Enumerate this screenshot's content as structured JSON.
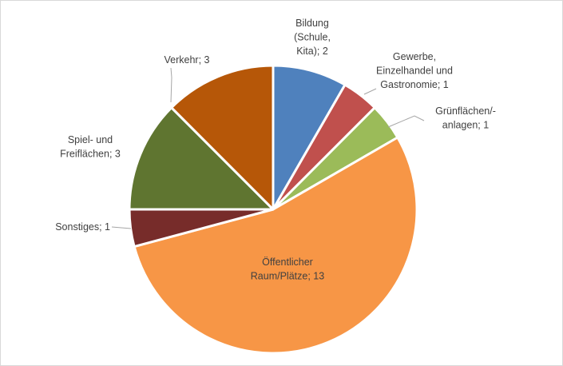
{
  "chart_data": {
    "type": "pie",
    "start_angle_deg": 0,
    "direction": "clockwise",
    "slices": [
      {
        "label": [
          "Bildung",
          "(Schule,",
          "Kita); 2"
        ],
        "category": "Bildung (Schule, Kita)",
        "value": 2,
        "color": "#4f81bd"
      },
      {
        "label": [
          "Gewerbe,",
          "Einzelhandel und",
          "Gastronomie; 1"
        ],
        "category": "Gewerbe, Einzelhandel und Gastronomie",
        "value": 1,
        "color": "#c0504d"
      },
      {
        "label": [
          "Grünflächen/-",
          "anlagen; 1"
        ],
        "category": "Grünflächen/-anlagen",
        "value": 1,
        "color": "#9bbb59"
      },
      {
        "label": [
          "Öffentlicher",
          "Raum/Plätze; 13"
        ],
        "category": "Öffentlicher Raum/Plätze",
        "value": 13,
        "color": "#f79646"
      },
      {
        "label": [
          "Sonstiges; 1"
        ],
        "category": "Sonstiges",
        "value": 1,
        "color": "#772c2a"
      },
      {
        "label": [
          "Spiel- und",
          "Freiflächen; 3"
        ],
        "category": "Spiel- und Freiflächen",
        "value": 3,
        "color": "#5f7530"
      },
      {
        "label": [
          "Verkehr; 3"
        ],
        "category": "Verkehr",
        "value": 3,
        "color": "#b65708"
      }
    ],
    "legend": "none",
    "data_labels": "category; value"
  }
}
